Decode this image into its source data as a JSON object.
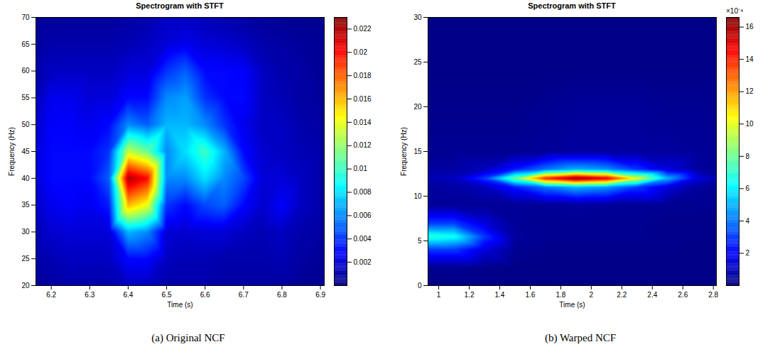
{
  "chart_data": [
    {
      "type": "heatmap",
      "title": "Spectrogram with STFT",
      "caption": "(a) Original NCF",
      "xlabel": "Time (s)",
      "ylabel": "Frequency (Hz)",
      "xlim": [
        6.16,
        6.91
      ],
      "xticks": [
        6.2,
        6.3,
        6.4,
        6.5,
        6.6,
        6.7,
        6.8,
        6.9
      ],
      "ylim": [
        20,
        70
      ],
      "yticks": [
        20,
        25,
        30,
        35,
        40,
        45,
        50,
        55,
        60,
        65,
        70
      ],
      "zlim": [
        0,
        0.023
      ],
      "zticks": [
        0.002,
        0.004,
        0.006,
        0.008,
        0.01,
        0.012,
        0.014,
        0.016,
        0.018,
        0.02,
        0.022
      ],
      "x": [
        6.15,
        6.2,
        6.25,
        6.3,
        6.35,
        6.4,
        6.45,
        6.5,
        6.55,
        6.6,
        6.65,
        6.7,
        6.75,
        6.8,
        6.85,
        6.9
      ],
      "y": [
        20,
        25,
        30,
        35,
        40,
        45,
        50,
        55,
        60,
        65,
        70
      ],
      "z": [
        [
          0.0005,
          0.0008,
          0.001,
          0.001,
          0.001,
          0.0015,
          0.0015,
          0.001,
          0.001,
          0.001,
          0.0008,
          0.0008,
          0.0008,
          0.0008,
          0.0005,
          0.0005
        ],
        [
          0.0008,
          0.0012,
          0.0015,
          0.0015,
          0.0015,
          0.003,
          0.003,
          0.0015,
          0.0012,
          0.0012,
          0.001,
          0.001,
          0.001,
          0.0012,
          0.0008,
          0.0005
        ],
        [
          0.001,
          0.0018,
          0.002,
          0.002,
          0.002,
          0.007,
          0.006,
          0.002,
          0.0018,
          0.002,
          0.002,
          0.0015,
          0.0012,
          0.0015,
          0.001,
          0.0008
        ],
        [
          0.0015,
          0.0025,
          0.0028,
          0.0025,
          0.0035,
          0.016,
          0.014,
          0.004,
          0.003,
          0.0045,
          0.005,
          0.003,
          0.0018,
          0.0028,
          0.0015,
          0.001
        ],
        [
          0.0018,
          0.003,
          0.003,
          0.003,
          0.005,
          0.022,
          0.02,
          0.006,
          0.006,
          0.008,
          0.006,
          0.0045,
          0.002,
          0.002,
          0.0015,
          0.001
        ],
        [
          0.0018,
          0.003,
          0.003,
          0.003,
          0.004,
          0.013,
          0.011,
          0.006,
          0.008,
          0.01,
          0.007,
          0.003,
          0.0018,
          0.0015,
          0.0012,
          0.001
        ],
        [
          0.0015,
          0.0028,
          0.0028,
          0.0025,
          0.003,
          0.006,
          0.005,
          0.007,
          0.007,
          0.006,
          0.004,
          0.0025,
          0.0015,
          0.0015,
          0.001,
          0.0008
        ],
        [
          0.001,
          0.0025,
          0.0025,
          0.002,
          0.002,
          0.003,
          0.003,
          0.006,
          0.0065,
          0.004,
          0.003,
          0.003,
          0.0015,
          0.0012,
          0.0008,
          0.0006
        ],
        [
          0.0008,
          0.0015,
          0.0015,
          0.0015,
          0.0015,
          0.002,
          0.002,
          0.004,
          0.005,
          0.003,
          0.003,
          0.0028,
          0.0015,
          0.001,
          0.0008,
          0.0005
        ],
        [
          0.0005,
          0.001,
          0.001,
          0.001,
          0.001,
          0.0012,
          0.0015,
          0.002,
          0.0025,
          0.002,
          0.0018,
          0.0015,
          0.001,
          0.0008,
          0.0006,
          0.0005
        ],
        [
          0.0004,
          0.0006,
          0.0006,
          0.0006,
          0.0006,
          0.0008,
          0.001,
          0.0015,
          0.0015,
          0.0012,
          0.001,
          0.0008,
          0.0006,
          0.0005,
          0.0004,
          0.0004
        ]
      ]
    },
    {
      "type": "heatmap",
      "title": "Spectrogram with STFT",
      "caption": "(b) Warped NCF",
      "xlabel": "Time (s)",
      "ylabel": "Frequency (Hz)",
      "xlim": [
        0.93,
        2.82
      ],
      "xticks": [
        1,
        1.2,
        1.4,
        1.6,
        1.8,
        2,
        2.2,
        2.4,
        2.6,
        2.8
      ],
      "ylim": [
        0,
        30
      ],
      "yticks": [
        0,
        5,
        10,
        15,
        20,
        25,
        30
      ],
      "zlim": [
        0,
        16.6
      ],
      "zticks": [
        2,
        4,
        6,
        8,
        10,
        12,
        14,
        16
      ],
      "zlabel": "×10⁻⁴",
      "x": [
        0.9,
        1.1,
        1.3,
        1.5,
        1.7,
        1.9,
        2.1,
        2.3,
        2.5,
        2.7,
        2.9
      ],
      "y": [
        0,
        2,
        4,
        5.5,
        7,
        9,
        11,
        12,
        13,
        15,
        20,
        25,
        30
      ],
      "z": [
        [
          0.1,
          0.1,
          0.1,
          0.1,
          0.1,
          0.1,
          0.1,
          0.1,
          0.1,
          0.1,
          0.1
        ],
        [
          0.3,
          0.3,
          0.2,
          0.1,
          0.1,
          0.1,
          0.1,
          0.1,
          0.1,
          0.1,
          0.1
        ],
        [
          3,
          3,
          1.5,
          0.3,
          0.2,
          0.2,
          0.2,
          0.2,
          0.2,
          0.1,
          0.1
        ],
        [
          7,
          6.5,
          3,
          0.5,
          0.3,
          0.3,
          0.3,
          0.3,
          0.2,
          0.2,
          0.1
        ],
        [
          3,
          3,
          1.5,
          0.4,
          0.3,
          0.3,
          0.3,
          0.3,
          0.2,
          0.2,
          0.1
        ],
        [
          0.4,
          0.4,
          0.4,
          0.4,
          0.4,
          0.5,
          0.4,
          0.4,
          0.3,
          0.3,
          0.2
        ],
        [
          0.5,
          0.6,
          1,
          2.5,
          4,
          5,
          4.5,
          3,
          1.5,
          0.5,
          0.3
        ],
        [
          0.8,
          1,
          3,
          8,
          14,
          16.5,
          15,
          10,
          5,
          1.5,
          0.5
        ],
        [
          0.5,
          0.6,
          1,
          2.5,
          4,
          5,
          4.5,
          3,
          1.5,
          0.5,
          0.3
        ],
        [
          0.3,
          0.3,
          0.3,
          0.3,
          0.4,
          0.5,
          0.5,
          0.5,
          0.5,
          0.4,
          0.3
        ],
        [
          0.2,
          0.2,
          0.2,
          0.2,
          0.3,
          0.4,
          0.4,
          0.4,
          0.3,
          0.3,
          0.2
        ],
        [
          0.1,
          0.1,
          0.1,
          0.1,
          0.1,
          0.1,
          0.1,
          0.1,
          0.1,
          0.1,
          0.1
        ],
        [
          0.1,
          0.1,
          0.1,
          0.1,
          0.1,
          0.1,
          0.1,
          0.1,
          0.1,
          0.1,
          0.1
        ]
      ]
    }
  ]
}
